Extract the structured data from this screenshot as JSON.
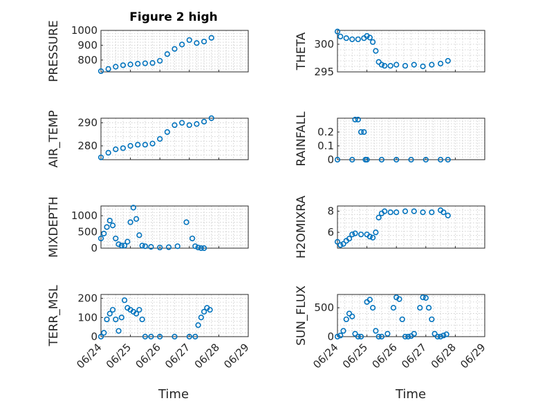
{
  "figure": {
    "title": "Figure 2 high",
    "xlabel": "Time"
  },
  "x_ticks": [
    "06/24",
    "06/25",
    "06/26",
    "06/27",
    "06/28",
    "06/29"
  ],
  "marker_color": "#0072BD",
  "chart_data": [
    {
      "type": "scatter",
      "id": "pressure",
      "ylabel": "PRESSURE",
      "ylim": [
        720,
        1000
      ],
      "yticks": [
        800,
        900,
        1000
      ],
      "x": [
        0.0,
        0.25,
        0.5,
        0.75,
        1.0,
        1.25,
        1.5,
        1.75,
        2.0,
        2.25,
        2.5,
        2.75,
        3.0,
        3.25,
        3.5,
        3.75
      ],
      "y": [
        725,
        740,
        755,
        765,
        770,
        775,
        778,
        780,
        795,
        840,
        875,
        905,
        935,
        915,
        925,
        950
      ]
    },
    {
      "type": "scatter",
      "id": "theta",
      "ylabel": "THETA",
      "ylim": [
        295,
        302.5
      ],
      "yticks": [
        295,
        300
      ],
      "x": [
        0.0,
        0.1,
        0.3,
        0.5,
        0.7,
        0.9,
        1.0,
        1.1,
        1.2,
        1.3,
        1.4,
        1.5,
        1.6,
        1.8,
        2.0,
        2.3,
        2.6,
        2.9,
        3.2,
        3.5,
        3.75
      ],
      "y": [
        302.3,
        301.4,
        301.1,
        300.9,
        300.9,
        301.1,
        301.5,
        301.2,
        300.4,
        298.8,
        296.8,
        296.3,
        296.1,
        296.1,
        296.3,
        296.1,
        296.3,
        296.0,
        296.3,
        296.5,
        297.0
      ]
    },
    {
      "type": "scatter",
      "id": "air_temp",
      "ylabel": "AIR_TEMP",
      "ylim": [
        274,
        292
      ],
      "yticks": [
        280,
        290
      ],
      "x": [
        0.0,
        0.25,
        0.5,
        0.75,
        1.0,
        1.25,
        1.5,
        1.75,
        2.0,
        2.25,
        2.5,
        2.75,
        3.0,
        3.25,
        3.5,
        3.75
      ],
      "y": [
        275,
        277,
        278.5,
        279,
        280,
        280.5,
        280.5,
        281,
        283,
        286,
        289,
        290,
        289,
        289.5,
        290.5,
        292
      ]
    },
    {
      "type": "scatter",
      "id": "rainfall",
      "ylabel": "RAINFALL",
      "ylim": [
        0,
        0.3
      ],
      "yticks": [
        0,
        0.1,
        0.2
      ],
      "x": [
        0.0,
        0.5,
        0.6,
        0.7,
        0.8,
        0.9,
        0.95,
        1.0,
        1.5,
        2.0,
        2.5,
        3.0,
        3.5,
        3.75
      ],
      "y": [
        0,
        0,
        0.29,
        0.29,
        0.2,
        0.2,
        0,
        0,
        0,
        0,
        0,
        0,
        0,
        0
      ]
    },
    {
      "type": "scatter",
      "id": "mixdepth",
      "ylabel": "MIXDEPTH",
      "ylim": [
        0,
        1300
      ],
      "yticks": [
        0,
        500,
        1000
      ],
      "x": [
        0.0,
        0.1,
        0.2,
        0.3,
        0.4,
        0.5,
        0.6,
        0.7,
        0.8,
        0.9,
        1.0,
        1.1,
        1.2,
        1.3,
        1.4,
        1.5,
        1.7,
        2.0,
        2.3,
        2.6,
        2.9,
        3.1,
        3.2,
        3.3,
        3.4,
        3.5
      ],
      "y": [
        300,
        450,
        650,
        850,
        700,
        300,
        120,
        80,
        80,
        200,
        800,
        1250,
        900,
        400,
        80,
        60,
        40,
        20,
        30,
        60,
        800,
        300,
        60,
        20,
        0,
        0
      ]
    },
    {
      "type": "scatter",
      "id": "h2omixra",
      "ylabel": "H2OMIXRA",
      "ylim": [
        4.5,
        8.5
      ],
      "yticks": [
        6,
        8
      ],
      "x": [
        0.0,
        0.1,
        0.2,
        0.3,
        0.4,
        0.5,
        0.6,
        0.8,
        1.0,
        1.1,
        1.2,
        1.3,
        1.4,
        1.5,
        1.6,
        1.8,
        2.0,
        2.3,
        2.6,
        2.9,
        3.2,
        3.5,
        3.6,
        3.75
      ],
      "y": [
        5.1,
        4.8,
        4.9,
        5.2,
        5.4,
        5.8,
        5.9,
        5.8,
        5.8,
        5.6,
        5.5,
        6.0,
        7.4,
        7.8,
        8.0,
        7.9,
        7.9,
        8.0,
        8.0,
        7.9,
        7.9,
        8.1,
        7.9,
        7.6
      ]
    },
    {
      "type": "scatter",
      "id": "terr_msl",
      "ylabel": "TERR_MSL",
      "ylim": [
        0,
        220
      ],
      "yticks": [
        0,
        100,
        200
      ],
      "x": [
        0.0,
        0.1,
        0.2,
        0.3,
        0.4,
        0.5,
        0.6,
        0.7,
        0.8,
        0.9,
        1.0,
        1.1,
        1.2,
        1.3,
        1.4,
        1.5,
        1.7,
        2.0,
        2.5,
        3.0,
        3.2,
        3.3,
        3.4,
        3.5,
        3.6,
        3.7
      ],
      "y": [
        0,
        20,
        90,
        120,
        140,
        90,
        30,
        100,
        190,
        150,
        140,
        130,
        120,
        140,
        90,
        0,
        0,
        0,
        0,
        0,
        0,
        60,
        100,
        130,
        150,
        140
      ]
    },
    {
      "type": "scatter",
      "id": "sun_flux",
      "ylabel": "SUN_FLUX",
      "ylim": [
        0,
        730
      ],
      "yticks": [
        0,
        500
      ],
      "x": [
        0.0,
        0.1,
        0.2,
        0.3,
        0.4,
        0.5,
        0.6,
        0.7,
        0.8,
        1.0,
        1.1,
        1.2,
        1.3,
        1.4,
        1.5,
        1.7,
        1.9,
        2.0,
        2.1,
        2.2,
        2.3,
        2.4,
        2.5,
        2.6,
        2.8,
        2.9,
        3.0,
        3.1,
        3.2,
        3.3,
        3.4,
        3.5,
        3.6,
        3.7
      ],
      "y": [
        0,
        20,
        100,
        300,
        400,
        350,
        50,
        0,
        0,
        600,
        640,
        500,
        100,
        0,
        0,
        50,
        500,
        680,
        650,
        300,
        0,
        0,
        10,
        50,
        500,
        680,
        670,
        500,
        300,
        50,
        0,
        0,
        20,
        40
      ]
    }
  ]
}
